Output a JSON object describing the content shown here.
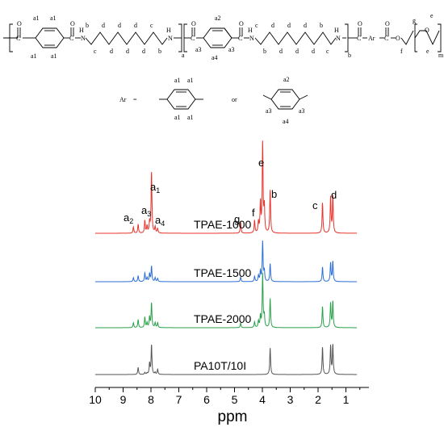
{
  "structure": {
    "chain": {
      "a1_top_left": "a1",
      "a1_top_right": "a1",
      "a1_bottom_left": "a1",
      "a1_bottom_right": "a1",
      "a2": "a2",
      "a3_left": "a3",
      "a3_right": "a3",
      "a4": "a4",
      "nh_1": "N",
      "nh_1_h": "H",
      "nh_2": "N",
      "nh_2_h": "H",
      "nh_3": "N",
      "nh_3_h": "H",
      "nh_4": "N",
      "nh_4_h": "H",
      "o_1": "O",
      "o_2": "O",
      "o_3": "O",
      "o_4": "O",
      "o_5": "O",
      "o_6": "O",
      "ester_o": "O",
      "ether_o": "O",
      "c_1": "C",
      "c_2": "C",
      "c_3": "C",
      "c_4": "C",
      "c_5": "C",
      "c_6": "C",
      "ar": "Ar",
      "sub_a": "a",
      "sub_b": "b",
      "sub_m": "m",
      "seq1_top": [
        "b",
        "d",
        "d",
        "d",
        "c"
      ],
      "seq1_bot": [
        "c",
        "d",
        "d",
        "d",
        "b"
      ],
      "seq2_top": [
        "c",
        "d",
        "d",
        "d",
        "b"
      ],
      "seq2_bot": [
        "b",
        "d",
        "d",
        "d",
        "c"
      ],
      "g": "g",
      "f": "f",
      "e_top": "e",
      "e_bot": "e"
    },
    "definition": {
      "ar_label": "Ar",
      "equals": "=",
      "or_word": "or",
      "para_a1_tl": "a1",
      "para_a1_tr": "a1",
      "para_a1_bl": "a1",
      "para_a1_br": "a1",
      "meta_a2": "a2",
      "meta_a3_l": "a3",
      "meta_a3_r": "a3",
      "meta_a4": "a4"
    }
  },
  "chart_data": {
    "type": "line",
    "title": "",
    "xlabel": "ppm",
    "ylabel": "",
    "xlim": [
      10,
      0
    ],
    "x_reversed": true,
    "x_ticks": [
      "10",
      "9",
      "8",
      "7",
      "6",
      "5",
      "4",
      "3",
      "2",
      "1"
    ],
    "series": [
      {
        "name": "TPAE-1000",
        "color": "#e8332b",
        "peaks": [
          {
            "ppm": 8.63,
            "height": 0.07
          },
          {
            "ppm": 8.46,
            "height": 0.1
          },
          {
            "ppm": 8.22,
            "height": 0.14
          },
          {
            "ppm": 8.14,
            "height": 0.08
          },
          {
            "ppm": 8.05,
            "height": 0.12
          },
          {
            "ppm": 7.98,
            "height": 0.68
          },
          {
            "ppm": 7.85,
            "height": 0.07
          },
          {
            "ppm": 7.76,
            "height": 0.05
          },
          {
            "ppm": 4.78,
            "height": 0.12
          },
          {
            "ppm": 4.28,
            "height": 0.14
          },
          {
            "ppm": 4.14,
            "height": 0.12
          },
          {
            "ppm": 4.07,
            "height": 0.33
          },
          {
            "ppm": 3.99,
            "height": 1.0
          },
          {
            "ppm": 3.93,
            "height": 0.28
          },
          {
            "ppm": 3.72,
            "height": 0.48
          },
          {
            "ppm": 1.84,
            "height": 0.34
          },
          {
            "ppm": 1.55,
            "height": 0.4
          },
          {
            "ppm": 1.47,
            "height": 0.41
          }
        ]
      },
      {
        "name": "TPAE-1500",
        "color": "#2b6fd6",
        "peaks": [
          {
            "ppm": 8.63,
            "height": 0.06
          },
          {
            "ppm": 8.46,
            "height": 0.09
          },
          {
            "ppm": 8.22,
            "height": 0.13
          },
          {
            "ppm": 8.14,
            "height": 0.06
          },
          {
            "ppm": 8.05,
            "height": 0.12
          },
          {
            "ppm": 7.98,
            "height": 0.23
          },
          {
            "ppm": 7.85,
            "height": 0.06
          },
          {
            "ppm": 7.76,
            "height": 0.05
          },
          {
            "ppm": 4.78,
            "height": 0.07
          },
          {
            "ppm": 4.28,
            "height": 0.08
          },
          {
            "ppm": 4.14,
            "height": 0.09
          },
          {
            "ppm": 4.07,
            "height": 0.15
          },
          {
            "ppm": 3.99,
            "height": 0.6
          },
          {
            "ppm": 3.93,
            "height": 0.15
          },
          {
            "ppm": 3.72,
            "height": 0.27
          },
          {
            "ppm": 1.84,
            "height": 0.22
          },
          {
            "ppm": 1.55,
            "height": 0.28
          },
          {
            "ppm": 1.47,
            "height": 0.3
          }
        ]
      },
      {
        "name": "TPAE-2000",
        "color": "#2aa04a",
        "peaks": [
          {
            "ppm": 8.63,
            "height": 0.06
          },
          {
            "ppm": 8.46,
            "height": 0.1
          },
          {
            "ppm": 8.22,
            "height": 0.13
          },
          {
            "ppm": 8.14,
            "height": 0.06
          },
          {
            "ppm": 8.05,
            "height": 0.13
          },
          {
            "ppm": 7.98,
            "height": 0.3
          },
          {
            "ppm": 7.85,
            "height": 0.06
          },
          {
            "ppm": 7.76,
            "height": 0.06
          },
          {
            "ppm": 4.78,
            "height": 0.06
          },
          {
            "ppm": 4.28,
            "height": 0.07
          },
          {
            "ppm": 4.14,
            "height": 0.08
          },
          {
            "ppm": 4.07,
            "height": 0.14
          },
          {
            "ppm": 3.99,
            "height": 0.66
          },
          {
            "ppm": 3.93,
            "height": 0.14
          },
          {
            "ppm": 3.72,
            "height": 0.36
          },
          {
            "ppm": 1.84,
            "height": 0.26
          },
          {
            "ppm": 1.55,
            "height": 0.3
          },
          {
            "ppm": 1.47,
            "height": 0.32
          }
        ]
      },
      {
        "name": "PA10T/10I",
        "color": "#555555",
        "peaks": [
          {
            "ppm": 8.63,
            "height": 0.0
          },
          {
            "ppm": 8.46,
            "height": 0.11
          },
          {
            "ppm": 8.22,
            "height": 0.03
          },
          {
            "ppm": 8.14,
            "height": 0.02
          },
          {
            "ppm": 8.05,
            "height": 0.17
          },
          {
            "ppm": 7.98,
            "height": 0.45
          },
          {
            "ppm": 7.85,
            "height": 0.03
          },
          {
            "ppm": 7.76,
            "height": 0.08
          },
          {
            "ppm": 3.72,
            "height": 0.41
          },
          {
            "ppm": 1.84,
            "height": 0.42
          },
          {
            "ppm": 1.55,
            "height": 0.44
          },
          {
            "ppm": 1.47,
            "height": 0.45
          }
        ]
      }
    ],
    "annotations": [
      {
        "text": "a1",
        "ppm": 8.0
      },
      {
        "text": "a2",
        "ppm": 8.8
      },
      {
        "text": "a3",
        "ppm": 8.24
      },
      {
        "text": "a4",
        "ppm": 7.7
      },
      {
        "text": "g",
        "ppm": 4.82
      },
      {
        "text": "f",
        "ppm": 4.22
      },
      {
        "text": "e",
        "ppm": 3.98
      },
      {
        "text": "b",
        "ppm": 3.55
      },
      {
        "text": "c",
        "ppm": 1.9
      },
      {
        "text": "d",
        "ppm": 1.3
      }
    ]
  }
}
